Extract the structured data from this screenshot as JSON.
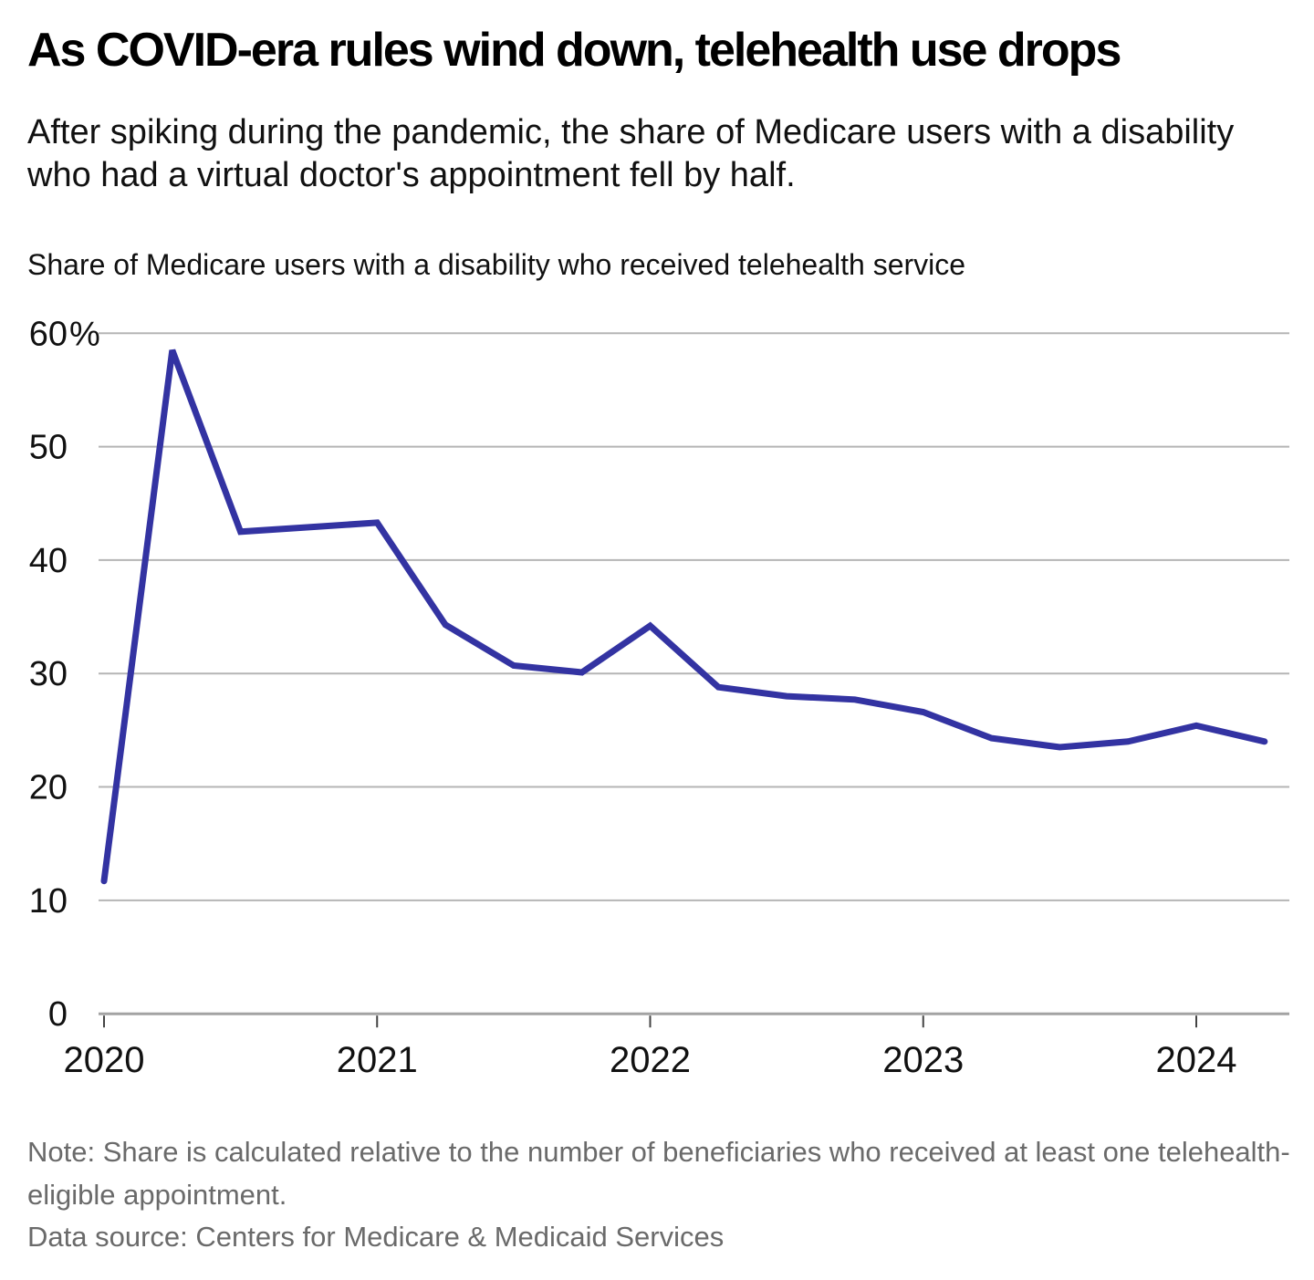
{
  "header": {
    "title": "As COVID-era rules wind down, telehealth use drops",
    "subtitle": "After spiking during the pandemic, the share of Medicare users with a disability who had a virtual doctor's appointment fell by half."
  },
  "chart_data": {
    "type": "line",
    "title": "Share of Medicare users with a disability who received telehealth service",
    "x": [
      "Q1 2020",
      "Q2 2020",
      "Q3 2020",
      "Q4 2020",
      "Q1 2021",
      "Q2 2021",
      "Q3 2021",
      "Q4 2021",
      "Q1 2022",
      "Q2 2022",
      "Q3 2022",
      "Q4 2022",
      "Q1 2023",
      "Q2 2023",
      "Q3 2023",
      "Q4 2023",
      "Q1 2024",
      "Q2 2024"
    ],
    "values": [
      11.7,
      58.5,
      42.5,
      42.9,
      43.3,
      34.3,
      30.7,
      30.1,
      34.2,
      28.8,
      28.0,
      27.7,
      26.6,
      24.3,
      23.5,
      24.0,
      25.4,
      24.0
    ],
    "x_tick_labels": [
      "2020",
      "2021",
      "2022",
      "2023",
      "2024"
    ],
    "y_ticks": [
      60,
      50,
      40,
      30,
      20,
      10,
      0
    ],
    "y_tick_labels": [
      "60%",
      "50",
      "40",
      "30",
      "20",
      "10",
      "0"
    ],
    "ylim": [
      0,
      62
    ],
    "xlabel": "",
    "ylabel": "",
    "legend": "none",
    "grid": "horizontal",
    "line_color": "#3333a2",
    "grid_color": "#b5b5b5",
    "axis_color": "#a3a3a3",
    "tick_color": "#444444",
    "label_color": "#111111"
  },
  "footer": {
    "note": "Note: Share is calculated relative to the number of beneficiaries who received at least one telehealth-eligible appointment.",
    "source": "Data source: Centers for Medicare & Medicaid Services"
  }
}
